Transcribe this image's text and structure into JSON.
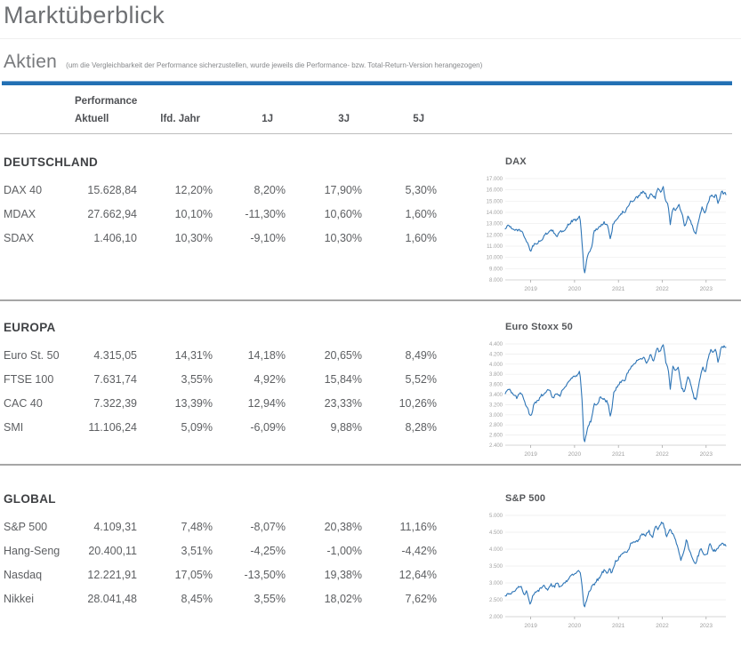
{
  "colors": {
    "accent_bar": "#2270b4",
    "chart_line": "#2e75b6",
    "grid": "#ececec"
  },
  "header": {
    "title": "Marktüberblick",
    "section": "Aktien",
    "note": "(um die Vergleichbarkeit der Performance sicherzustellen, wurde jeweils die Performance- bzw. Total-Return-Version herangezogen)"
  },
  "table": {
    "group_label": "Performance",
    "columns": [
      "Aktuell",
      "lfd. Jahr",
      "1J",
      "3J",
      "5J"
    ]
  },
  "sections": [
    {
      "heading": "DEUTSCHLAND",
      "rows": [
        [
          "DAX 40",
          "15.628,84",
          "12,20%",
          "8,20%",
          "17,90%",
          "5,30%"
        ],
        [
          "MDAX",
          "27.662,94",
          "10,10%",
          "-11,30%",
          "10,60%",
          "1,60%"
        ],
        [
          "SDAX",
          "1.406,10",
          "10,30%",
          "-9,10%",
          "10,30%",
          "1,60%"
        ]
      ]
    },
    {
      "heading": "EUROPA",
      "rows": [
        [
          "Euro St. 50",
          "4.315,05",
          "14,31%",
          "14,18%",
          "20,65%",
          "8,49%"
        ],
        [
          "FTSE 100",
          "7.631,74",
          "3,55%",
          "4,92%",
          "15,84%",
          "5,52%"
        ],
        [
          "CAC 40",
          "7.322,39",
          "13,39%",
          "12,94%",
          "23,33%",
          "10,26%"
        ],
        [
          "SMI",
          "11.106,24",
          "5,09%",
          "-6,09%",
          "9,88%",
          "8,28%"
        ]
      ]
    },
    {
      "heading": "GLOBAL",
      "rows": [
        [
          "S&P 500",
          "4.109,31",
          "7,48%",
          "-8,07%",
          "20,38%",
          "11,16%"
        ],
        [
          "Hang-Seng",
          "20.400,11",
          "3,51%",
          "-4,25%",
          "-1,00%",
          "-4,42%"
        ],
        [
          "Nasdaq",
          "12.221,91",
          "17,05%",
          "-13,50%",
          "19,38%",
          "12,64%"
        ],
        [
          "Nikkei",
          "28.041,48",
          "8,45%",
          "3,55%",
          "18,02%",
          "7,62%"
        ]
      ]
    }
  ],
  "chart_data": [
    {
      "type": "line",
      "title": "DAX",
      "xlabel": "",
      "ylabel": "",
      "x_range": [
        2018.42,
        2023.45
      ],
      "x_ticks": [
        2019,
        2020,
        2021,
        2022,
        2023
      ],
      "y_range": [
        8000,
        17000
      ],
      "y_step": 1000,
      "grid": true,
      "legend": "none",
      "seed": 3,
      "series": [
        {
          "name": "DAX",
          "points": [
            [
              2018.42,
              12550
            ],
            [
              2018.5,
              12900
            ],
            [
              2018.58,
              12600
            ],
            [
              2018.65,
              12350
            ],
            [
              2018.72,
              12500
            ],
            [
              2018.8,
              12250
            ],
            [
              2018.9,
              11400
            ],
            [
              2019.0,
              10550
            ],
            [
              2019.05,
              10950
            ],
            [
              2019.15,
              11350
            ],
            [
              2019.25,
              11550
            ],
            [
              2019.33,
              12000
            ],
            [
              2019.42,
              12300
            ],
            [
              2019.5,
              12400
            ],
            [
              2019.58,
              11850
            ],
            [
              2019.65,
              12200
            ],
            [
              2019.75,
              12350
            ],
            [
              2019.85,
              12900
            ],
            [
              2019.95,
              13250
            ],
            [
              2020.05,
              13300
            ],
            [
              2020.12,
              13750
            ],
            [
              2020.16,
              12000
            ],
            [
              2020.22,
              8450
            ],
            [
              2020.3,
              10200
            ],
            [
              2020.38,
              10700
            ],
            [
              2020.45,
              12350
            ],
            [
              2020.52,
              12450
            ],
            [
              2020.6,
              12900
            ],
            [
              2020.68,
              13050
            ],
            [
              2020.75,
              12800
            ],
            [
              2020.82,
              11600
            ],
            [
              2020.88,
              13000
            ],
            [
              2020.96,
              13300
            ],
            [
              2021.05,
              13900
            ],
            [
              2021.15,
              14050
            ],
            [
              2021.25,
              14750
            ],
            [
              2021.35,
              15150
            ],
            [
              2021.45,
              15450
            ],
            [
              2021.52,
              15650
            ],
            [
              2021.6,
              15800
            ],
            [
              2021.67,
              15100
            ],
            [
              2021.75,
              15750
            ],
            [
              2021.83,
              15200
            ],
            [
              2021.9,
              16000
            ],
            [
              2021.98,
              15900
            ],
            [
              2022.02,
              16270
            ],
            [
              2022.08,
              15000
            ],
            [
              2022.14,
              14450
            ],
            [
              2022.18,
              12850
            ],
            [
              2022.24,
              14400
            ],
            [
              2022.3,
              14250
            ],
            [
              2022.38,
              14600
            ],
            [
              2022.45,
              13900
            ],
            [
              2022.52,
              12650
            ],
            [
              2022.58,
              13700
            ],
            [
              2022.65,
              13250
            ],
            [
              2022.72,
              12350
            ],
            [
              2022.76,
              12150
            ],
            [
              2022.83,
              13250
            ],
            [
              2022.9,
              14400
            ],
            [
              2022.98,
              13950
            ],
            [
              2023.06,
              15100
            ],
            [
              2023.12,
              15550
            ],
            [
              2023.18,
              15250
            ],
            [
              2023.22,
              15650
            ],
            [
              2023.27,
              14850
            ],
            [
              2023.36,
              15850
            ],
            [
              2023.45,
              15628
            ]
          ]
        }
      ]
    },
    {
      "type": "line",
      "title": "Euro Stoxx 50",
      "xlabel": "",
      "ylabel": "",
      "x_range": [
        2018.42,
        2023.45
      ],
      "x_ticks": [
        2019,
        2020,
        2021,
        2022,
        2023
      ],
      "y_range": [
        2400,
        4400
      ],
      "y_step": 200,
      "grid": true,
      "legend": "none",
      "seed": 8,
      "series": [
        {
          "name": "Euro Stoxx 50",
          "points": [
            [
              2018.42,
              3430
            ],
            [
              2018.5,
              3500
            ],
            [
              2018.56,
              3440
            ],
            [
              2018.62,
              3390
            ],
            [
              2018.68,
              3330
            ],
            [
              2018.75,
              3440
            ],
            [
              2018.82,
              3390
            ],
            [
              2018.9,
              3170
            ],
            [
              2019.0,
              2950
            ],
            [
              2019.08,
              3220
            ],
            [
              2019.17,
              3300
            ],
            [
              2019.25,
              3385
            ],
            [
              2019.33,
              3440
            ],
            [
              2019.42,
              3500
            ],
            [
              2019.5,
              3320
            ],
            [
              2019.58,
              3450
            ],
            [
              2019.67,
              3380
            ],
            [
              2019.75,
              3530
            ],
            [
              2019.85,
              3620
            ],
            [
              2019.95,
              3745
            ],
            [
              2020.05,
              3790
            ],
            [
              2020.12,
              3860
            ],
            [
              2020.17,
              3300
            ],
            [
              2020.22,
              2390
            ],
            [
              2020.3,
              2790
            ],
            [
              2020.38,
              2880
            ],
            [
              2020.45,
              3230
            ],
            [
              2020.52,
              3220
            ],
            [
              2020.6,
              3350
            ],
            [
              2020.67,
              3300
            ],
            [
              2020.75,
              3270
            ],
            [
              2020.82,
              2950
            ],
            [
              2020.9,
              3460
            ],
            [
              2020.97,
              3550
            ],
            [
              2021.05,
              3650
            ],
            [
              2021.15,
              3700
            ],
            [
              2021.25,
              3900
            ],
            [
              2021.33,
              3980
            ],
            [
              2021.42,
              4070
            ],
            [
              2021.5,
              4100
            ],
            [
              2021.58,
              4150
            ],
            [
              2021.65,
              4000
            ],
            [
              2021.73,
              4200
            ],
            [
              2021.8,
              4050
            ],
            [
              2021.88,
              4310
            ],
            [
              2021.95,
              4230
            ],
            [
              2022.02,
              4400
            ],
            [
              2022.08,
              4050
            ],
            [
              2022.14,
              3900
            ],
            [
              2022.18,
              3500
            ],
            [
              2022.24,
              3950
            ],
            [
              2022.3,
              3850
            ],
            [
              2022.36,
              3950
            ],
            [
              2022.44,
              3550
            ],
            [
              2022.5,
              3450
            ],
            [
              2022.58,
              3790
            ],
            [
              2022.65,
              3600
            ],
            [
              2022.72,
              3350
            ],
            [
              2022.76,
              3280
            ],
            [
              2022.84,
              3600
            ],
            [
              2022.92,
              3950
            ],
            [
              2022.98,
              3830
            ],
            [
              2023.06,
              4180
            ],
            [
              2023.12,
              4300
            ],
            [
              2023.18,
              4200
            ],
            [
              2023.22,
              4320
            ],
            [
              2023.27,
              4050
            ],
            [
              2023.36,
              4350
            ],
            [
              2023.45,
              4315
            ]
          ]
        }
      ]
    },
    {
      "type": "line",
      "title": "S&P 500",
      "xlabel": "",
      "ylabel": "",
      "x_range": [
        2018.42,
        2023.45
      ],
      "x_ticks": [
        2019,
        2020,
        2021,
        2022,
        2023
      ],
      "y_range": [
        2000,
        5000
      ],
      "y_step": 500,
      "grid": true,
      "legend": "none",
      "seed": 5,
      "series": [
        {
          "name": "S&P 500",
          "points": [
            [
              2018.42,
              2620
            ],
            [
              2018.5,
              2700
            ],
            [
              2018.58,
              2720
            ],
            [
              2018.65,
              2800
            ],
            [
              2018.72,
              2870
            ],
            [
              2018.78,
              2920
            ],
            [
              2018.85,
              2650
            ],
            [
              2018.92,
              2750
            ],
            [
              2018.98,
              2350
            ],
            [
              2019.05,
              2600
            ],
            [
              2019.12,
              2750
            ],
            [
              2019.2,
              2800
            ],
            [
              2019.3,
              2900
            ],
            [
              2019.38,
              2750
            ],
            [
              2019.46,
              2950
            ],
            [
              2019.54,
              2880
            ],
            [
              2019.6,
              3020
            ],
            [
              2019.65,
              2850
            ],
            [
              2019.75,
              2980
            ],
            [
              2019.85,
              3090
            ],
            [
              2019.95,
              3230
            ],
            [
              2020.05,
              3300
            ],
            [
              2020.12,
              3380
            ],
            [
              2020.17,
              2950
            ],
            [
              2020.22,
              2200
            ],
            [
              2020.3,
              2650
            ],
            [
              2020.38,
              2850
            ],
            [
              2020.45,
              2950
            ],
            [
              2020.52,
              3100
            ],
            [
              2020.6,
              3230
            ],
            [
              2020.67,
              3400
            ],
            [
              2020.72,
              3270
            ],
            [
              2020.8,
              3420
            ],
            [
              2020.85,
              3270
            ],
            [
              2020.92,
              3600
            ],
            [
              2020.98,
              3700
            ],
            [
              2021.05,
              3800
            ],
            [
              2021.12,
              3900
            ],
            [
              2021.2,
              3880
            ],
            [
              2021.28,
              4150
            ],
            [
              2021.35,
              4200
            ],
            [
              2021.45,
              4250
            ],
            [
              2021.52,
              4400
            ],
            [
              2021.6,
              4420
            ],
            [
              2021.7,
              4520
            ],
            [
              2021.77,
              4350
            ],
            [
              2021.85,
              4680
            ],
            [
              2021.9,
              4550
            ],
            [
              2021.98,
              4770
            ],
            [
              2022.02,
              4790
            ],
            [
              2022.1,
              4350
            ],
            [
              2022.17,
              4580
            ],
            [
              2022.25,
              4450
            ],
            [
              2022.33,
              4150
            ],
            [
              2022.42,
              3680
            ],
            [
              2022.48,
              3900
            ],
            [
              2022.55,
              4280
            ],
            [
              2022.62,
              3950
            ],
            [
              2022.7,
              3650
            ],
            [
              2022.76,
              3580
            ],
            [
              2022.83,
              3850
            ],
            [
              2022.88,
              4050
            ],
            [
              2022.95,
              3820
            ],
            [
              2023.02,
              3850
            ],
            [
              2023.08,
              4150
            ],
            [
              2023.14,
              4000
            ],
            [
              2023.2,
              3950
            ],
            [
              2023.27,
              4050
            ],
            [
              2023.33,
              4150
            ],
            [
              2023.45,
              4109
            ]
          ]
        }
      ]
    }
  ]
}
